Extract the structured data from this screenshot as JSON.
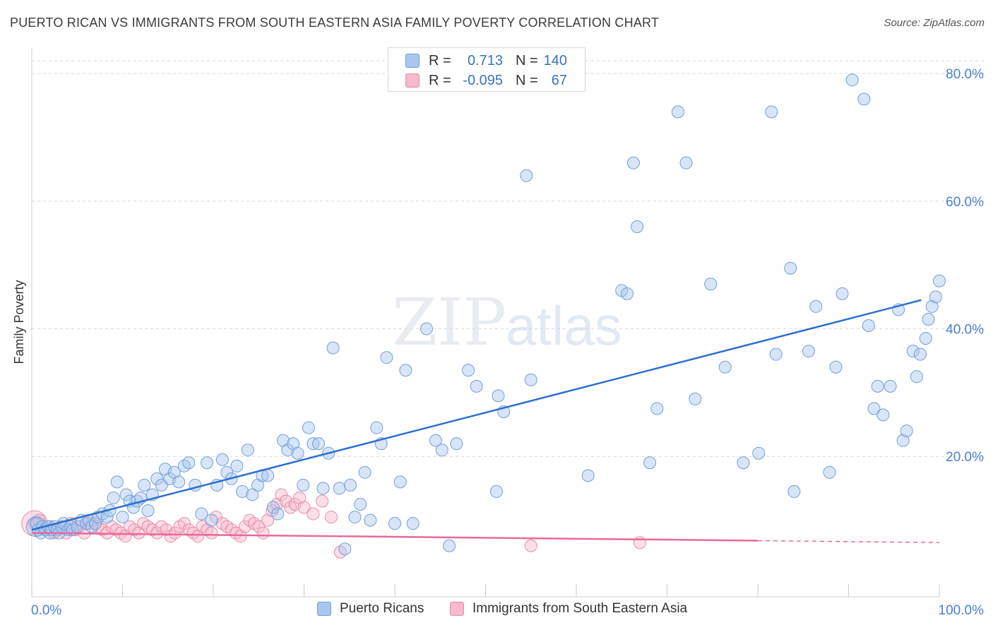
{
  "header": {
    "title": "PUERTO RICAN VS IMMIGRANTS FROM SOUTH EASTERN ASIA FAMILY POVERTY CORRELATION CHART",
    "source": "Source: ZipAtlas.com"
  },
  "watermark": {
    "zip": "ZIP",
    "atlas": "atlas"
  },
  "stats_legend": [
    {
      "r_label": "R =",
      "r_value": "0.713",
      "n_label": "N =",
      "n_value": "140",
      "color": "#a9c6ee",
      "text_color": "#3a72c4"
    },
    {
      "r_label": "R =",
      "r_value": "-0.095",
      "n_label": "N =",
      "n_value": "67",
      "color": "#f6b9cd",
      "text_color": "#3a72c4"
    }
  ],
  "bottom_legend": [
    {
      "label": "Puerto Ricans",
      "color": "#a9c6ee"
    },
    {
      "label": "Immigrants from South Eastern Asia",
      "color": "#f6b9cd"
    }
  ],
  "chart_data": {
    "type": "scatter",
    "title": "PUERTO RICAN VS IMMIGRANTS FROM SOUTH EASTERN ASIA FAMILY POVERTY CORRELATION CHART",
    "xlabel": "",
    "ylabel": "Family Poverty",
    "xlim": [
      0,
      100
    ],
    "ylim": [
      -2,
      84
    ],
    "x_tick_labels": [
      "0.0%",
      "100.0%"
    ],
    "y_ticks": [
      20,
      40,
      60,
      80
    ],
    "y_tick_labels": [
      "20.0%",
      "40.0%",
      "60.0%",
      "80.0%"
    ],
    "grid": true,
    "colors": {
      "blue_fill": "#a9c6ee",
      "blue_edge": "#6f9fdc",
      "blue_line": "#2d6fcf",
      "pink_fill": "#f6b9cd",
      "pink_edge": "#e98aa8",
      "pink_line": "#e8699a",
      "tick_label": "#4a7fd0",
      "grid": "#d9d9d9"
    },
    "series": [
      {
        "name": "Puerto Ricans",
        "trend": {
          "x0": 0,
          "y0": 8.5,
          "x1": 98,
          "y1": 44.5,
          "dashed_from": null
        },
        "points": [
          [
            0.5,
            9.5
          ],
          [
            0.7,
            8.5
          ],
          [
            1.0,
            8.0
          ],
          [
            1.2,
            9.0
          ],
          [
            1.5,
            8.5
          ],
          [
            1.8,
            9.0
          ],
          [
            2.0,
            8.0
          ],
          [
            2.2,
            8.5
          ],
          [
            2.5,
            9.0
          ],
          [
            2.8,
            8.5
          ],
          [
            3.0,
            8.0
          ],
          [
            3.3,
            9.0
          ],
          [
            3.5,
            9.5
          ],
          [
            4.0,
            8.5
          ],
          [
            4.3,
            9.0
          ],
          [
            4.5,
            8.5
          ],
          [
            5.0,
            9.0
          ],
          [
            5.5,
            10.0
          ],
          [
            6.0,
            9.5
          ],
          [
            6.3,
            10.0
          ],
          [
            6.6,
            9.0
          ],
          [
            7.0,
            9.5
          ],
          [
            7.3,
            10.5
          ],
          [
            7.8,
            11.0
          ],
          [
            8.3,
            10.5
          ],
          [
            8.6,
            11.5
          ],
          [
            9.0,
            13.5
          ],
          [
            9.4,
            16.0
          ],
          [
            10.0,
            10.5
          ],
          [
            10.4,
            14.0
          ],
          [
            10.8,
            13.0
          ],
          [
            11.2,
            12.0
          ],
          [
            11.6,
            13.0
          ],
          [
            12.0,
            13.5
          ],
          [
            12.4,
            15.5
          ],
          [
            12.8,
            11.5
          ],
          [
            13.3,
            14.0
          ],
          [
            13.8,
            16.5
          ],
          [
            14.3,
            15.5
          ],
          [
            14.7,
            18.0
          ],
          [
            15.2,
            16.5
          ],
          [
            15.7,
            17.5
          ],
          [
            16.2,
            16.0
          ],
          [
            16.8,
            18.5
          ],
          [
            17.3,
            19.0
          ],
          [
            18.0,
            15.5
          ],
          [
            18.7,
            11.0
          ],
          [
            19.3,
            19.0
          ],
          [
            19.8,
            10.0
          ],
          [
            20.4,
            15.5
          ],
          [
            21.0,
            19.5
          ],
          [
            21.5,
            17.5
          ],
          [
            22.0,
            16.5
          ],
          [
            22.6,
            18.5
          ],
          [
            23.2,
            14.5
          ],
          [
            23.8,
            21.0
          ],
          [
            24.3,
            14.0
          ],
          [
            24.9,
            15.5
          ],
          [
            25.4,
            17.0
          ],
          [
            26.0,
            17.0
          ],
          [
            26.6,
            12.0
          ],
          [
            27.1,
            11.0
          ],
          [
            27.7,
            22.5
          ],
          [
            28.2,
            21.0
          ],
          [
            28.8,
            22.0
          ],
          [
            29.3,
            20.5
          ],
          [
            29.9,
            15.5
          ],
          [
            30.5,
            24.5
          ],
          [
            31.0,
            22.0
          ],
          [
            31.6,
            22.0
          ],
          [
            32.1,
            15.0
          ],
          [
            32.7,
            20.5
          ],
          [
            33.2,
            37.0
          ],
          [
            33.9,
            15.0
          ],
          [
            34.5,
            5.5
          ],
          [
            35.1,
            15.5
          ],
          [
            35.6,
            10.5
          ],
          [
            36.2,
            12.5
          ],
          [
            36.7,
            17.5
          ],
          [
            37.3,
            10.0
          ],
          [
            38.0,
            24.5
          ],
          [
            38.5,
            22.0
          ],
          [
            39.1,
            35.5
          ],
          [
            40.0,
            9.5
          ],
          [
            40.6,
            16.0
          ],
          [
            41.2,
            33.5
          ],
          [
            42.0,
            9.5
          ],
          [
            43.5,
            40.0
          ],
          [
            44.5,
            22.5
          ],
          [
            45.2,
            21.0
          ],
          [
            46.0,
            6.0
          ],
          [
            46.8,
            22.0
          ],
          [
            48.1,
            33.5
          ],
          [
            49.0,
            31.0
          ],
          [
            51.2,
            14.5
          ],
          [
            51.4,
            29.5
          ],
          [
            52.0,
            27.0
          ],
          [
            54.5,
            64.0
          ],
          [
            55.0,
            32.0
          ],
          [
            61.3,
            17.0
          ],
          [
            65.0,
            46.0
          ],
          [
            65.6,
            45.5
          ],
          [
            66.3,
            66.0
          ],
          [
            66.7,
            56.0
          ],
          [
            68.1,
            19.0
          ],
          [
            68.9,
            27.5
          ],
          [
            71.2,
            74.0
          ],
          [
            72.1,
            66.0
          ],
          [
            73.1,
            29.0
          ],
          [
            74.8,
            47.0
          ],
          [
            76.4,
            34.0
          ],
          [
            78.4,
            19.0
          ],
          [
            80.1,
            20.5
          ],
          [
            81.5,
            74.0
          ],
          [
            82.0,
            36.0
          ],
          [
            83.6,
            49.5
          ],
          [
            84.0,
            14.5
          ],
          [
            85.6,
            36.5
          ],
          [
            86.4,
            43.5
          ],
          [
            87.9,
            17.5
          ],
          [
            88.6,
            34.0
          ],
          [
            89.3,
            45.5
          ],
          [
            90.4,
            79.0
          ],
          [
            91.7,
            76.0
          ],
          [
            92.2,
            40.5
          ],
          [
            92.8,
            27.5
          ],
          [
            93.2,
            31.0
          ],
          [
            93.8,
            26.5
          ],
          [
            94.6,
            31.0
          ],
          [
            95.5,
            43.0
          ],
          [
            96.0,
            22.5
          ],
          [
            96.4,
            24.0
          ],
          [
            97.1,
            36.5
          ],
          [
            97.5,
            32.5
          ],
          [
            97.9,
            36.0
          ],
          [
            98.5,
            38.5
          ],
          [
            98.8,
            41.5
          ],
          [
            99.2,
            43.5
          ],
          [
            99.6,
            45.0
          ],
          [
            100.0,
            47.5
          ]
        ]
      },
      {
        "name": "Immigrants from South Eastern Asia",
        "trend": {
          "x0": 0,
          "y0": 8.0,
          "x1": 100,
          "y1": 6.5,
          "dashed_from": 80
        },
        "points": [
          [
            0.3,
            9.5
          ],
          [
            0.8,
            10.0
          ],
          [
            1.2,
            9.0
          ],
          [
            1.6,
            8.5
          ],
          [
            2.0,
            9.0
          ],
          [
            2.4,
            8.0
          ],
          [
            2.9,
            8.5
          ],
          [
            3.3,
            9.0
          ],
          [
            3.8,
            8.0
          ],
          [
            4.3,
            9.5
          ],
          [
            4.8,
            8.5
          ],
          [
            5.3,
            9.0
          ],
          [
            5.8,
            8.0
          ],
          [
            6.3,
            9.5
          ],
          [
            6.8,
            10.0
          ],
          [
            7.3,
            9.0
          ],
          [
            7.8,
            8.5
          ],
          [
            8.3,
            8.0
          ],
          [
            8.8,
            9.0
          ],
          [
            9.3,
            8.5
          ],
          [
            9.8,
            8.0
          ],
          [
            10.3,
            7.5
          ],
          [
            10.8,
            9.0
          ],
          [
            11.3,
            8.5
          ],
          [
            11.8,
            8.0
          ],
          [
            12.3,
            9.5
          ],
          [
            12.8,
            9.0
          ],
          [
            13.3,
            8.5
          ],
          [
            13.8,
            8.0
          ],
          [
            14.3,
            9.0
          ],
          [
            14.8,
            8.5
          ],
          [
            15.3,
            7.5
          ],
          [
            15.8,
            8.0
          ],
          [
            16.3,
            9.0
          ],
          [
            16.8,
            9.5
          ],
          [
            17.3,
            8.5
          ],
          [
            17.8,
            8.0
          ],
          [
            18.3,
            7.5
          ],
          [
            18.8,
            9.0
          ],
          [
            19.3,
            8.5
          ],
          [
            19.8,
            8.0
          ],
          [
            20.3,
            10.5
          ],
          [
            21.0,
            9.5
          ],
          [
            21.5,
            9.0
          ],
          [
            22.0,
            8.5
          ],
          [
            22.5,
            8.0
          ],
          [
            23.0,
            7.5
          ],
          [
            23.5,
            9.0
          ],
          [
            24.0,
            10.0
          ],
          [
            24.5,
            9.5
          ],
          [
            25.0,
            9.0
          ],
          [
            25.5,
            8.0
          ],
          [
            26.0,
            10.0
          ],
          [
            26.5,
            11.5
          ],
          [
            27.0,
            12.5
          ],
          [
            27.5,
            14.0
          ],
          [
            28.0,
            13.0
          ],
          [
            28.5,
            12.0
          ],
          [
            29.0,
            12.5
          ],
          [
            29.5,
            13.5
          ],
          [
            30.0,
            12.0
          ],
          [
            31.0,
            11.0
          ],
          [
            32.0,
            13.0
          ],
          [
            33.0,
            10.5
          ],
          [
            34.0,
            5.0
          ],
          [
            55.0,
            6.0
          ],
          [
            67.0,
            6.5
          ]
        ]
      }
    ]
  }
}
